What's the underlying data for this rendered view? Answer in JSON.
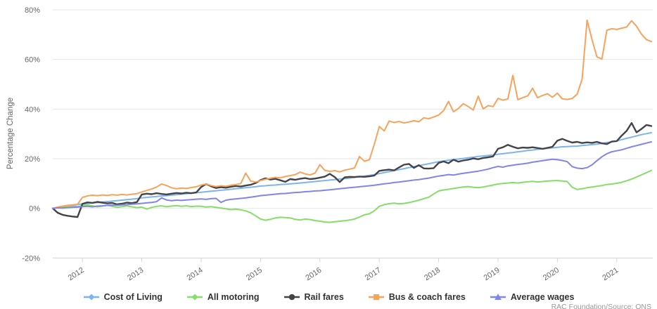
{
  "chart": {
    "ylabel": "Percentage Change",
    "y_tick_labels": [
      "80%",
      "60%",
      "40%",
      "20%",
      "0%",
      "-20%"
    ],
    "x_tick_labels": [
      "2012",
      "2013",
      "2014",
      "2015",
      "2016",
      "2017",
      "2018",
      "2019",
      "2020",
      "2021"
    ],
    "attribution": "RAC Foundation/Source: ONS"
  },
  "chart_data": {
    "type": "line",
    "title": "",
    "xlabel": "",
    "ylabel": "Percentage Change",
    "ylim": [
      -20,
      80
    ],
    "y_ticks_percent": [
      80,
      60,
      40,
      20,
      0,
      -20
    ],
    "x_start": "2011-07",
    "x_end": "2021-08",
    "x_interval": "monthly",
    "x_tick_labels": [
      "2012",
      "2013",
      "2014",
      "2015",
      "2016",
      "2017",
      "2018",
      "2019",
      "2020",
      "2021"
    ],
    "grid": "horizontal-only",
    "legend_position": "bottom",
    "background": "#ffffff",
    "series": [
      {
        "name": "Cost of Living",
        "color": "#7cb5ec",
        "marker": "diamond",
        "line_width": 2,
        "values": [
          0,
          0.3,
          0.6,
          0.9,
          1.2,
          1.5,
          1.8,
          2.0,
          2.2,
          2.3,
          2.5,
          2.7,
          2.9,
          3.1,
          3.3,
          3.5,
          3.7,
          3.9,
          4.2,
          4.4,
          4.6,
          4.8,
          5.0,
          5.1,
          5.3,
          5.5,
          5.7,
          5.9,
          6.1,
          6.3,
          6.5,
          6.7,
          6.9,
          7.1,
          7.3,
          7.5,
          7.7,
          7.9,
          8.1,
          8.3,
          8.5,
          8.7,
          9.0,
          9.1,
          9.3,
          9.4,
          9.6,
          9.7,
          9.9,
          10.0,
          10.2,
          10.4,
          10.6,
          10.8,
          11.0,
          11.2,
          11.4,
          11.6,
          11.8,
          12.0,
          12.2,
          12.5,
          12.7,
          13.0,
          13.3,
          13.6,
          14.0,
          14.4,
          14.8,
          15.2,
          15.6,
          16.0,
          16.4,
          16.8,
          17.2,
          17.6,
          18.0,
          18.4,
          18.8,
          19.1,
          19.4,
          19.6,
          19.9,
          20.1,
          20.4,
          20.6,
          20.9,
          21.1,
          21.3,
          21.5,
          21.8,
          22.0,
          22.3,
          22.5,
          22.8,
          23.0,
          23.3,
          23.5,
          23.8,
          24.0,
          24.2,
          24.4,
          24.6,
          24.8,
          24.9,
          25.0,
          25.1,
          25.3,
          25.5,
          25.7,
          25.9,
          26.2,
          26.5,
          26.8,
          27.2,
          27.7,
          28.2,
          28.7,
          29.2,
          29.7,
          30.1,
          30.5
        ]
      },
      {
        "name": "All motoring",
        "color": "#86dd68",
        "marker": "diamond",
        "line_width": 2,
        "values": [
          0,
          0.4,
          0.2,
          0.6,
          0.9,
          0.7,
          1.1,
          1.4,
          1.0,
          0.6,
          0.9,
          1.2,
          0.8,
          0.4,
          0.7,
          1.0,
          0.6,
          0.3,
          0.5,
          -0.3,
          0.4,
          0.8,
          1.0,
          0.7,
          0.9,
          1.1,
          0.8,
          1.0,
          0.7,
          0.9,
          0.8,
          0.5,
          0.7,
          0.4,
          0.1,
          -0.2,
          -0.5,
          -0.3,
          -0.6,
          -1.0,
          -1.8,
          -3.0,
          -4.3,
          -4.8,
          -4.4,
          -3.9,
          -3.6,
          -3.7,
          -3.9,
          -4.4,
          -4.7,
          -4.3,
          -4.5,
          -4.9,
          -5.2,
          -5.5,
          -5.6,
          -5.4,
          -5.2,
          -5.0,
          -4.7,
          -4.3,
          -3.5,
          -2.6,
          -2.2,
          -1.0,
          0.8,
          1.5,
          1.9,
          2.1,
          1.8,
          2.0,
          2.3,
          2.8,
          3.3,
          3.9,
          4.5,
          5.8,
          7.0,
          7.4,
          7.7,
          8.0,
          8.3,
          8.6,
          8.8,
          8.5,
          8.3,
          8.6,
          9.0,
          9.4,
          9.8,
          10.0,
          10.2,
          10.4,
          10.2,
          10.5,
          10.7,
          10.9,
          10.6,
          10.8,
          11.0,
          11.1,
          11.2,
          11.0,
          10.8,
          8.5,
          7.6,
          7.9,
          8.3,
          8.6,
          8.9,
          9.2,
          9.6,
          9.8,
          10.1,
          10.5,
          11.1,
          11.8,
          12.6,
          13.5,
          14.4,
          15.3
        ]
      },
      {
        "name": "Rail fares",
        "color": "#434348",
        "marker": "circle",
        "line_width": 2.4,
        "values": [
          0,
          -1.8,
          -2.6,
          -3.0,
          -3.3,
          -3.5,
          1.8,
          2.4,
          2.2,
          2.6,
          2.3,
          2.0,
          2.2,
          1.6,
          1.9,
          2.3,
          2.1,
          2.5,
          5.6,
          5.9,
          5.7,
          6.1,
          5.8,
          5.6,
          5.9,
          6.2,
          6.0,
          6.3,
          6.1,
          6.4,
          8.6,
          9.8,
          8.9,
          8.2,
          8.5,
          8.3,
          8.7,
          9.0,
          8.8,
          9.2,
          9.5,
          10.2,
          11.4,
          12.1,
          11.6,
          11.9,
          11.3,
          10.7,
          11.8,
          11.5,
          11.9,
          12.2,
          11.8,
          12.0,
          12.4,
          12.8,
          13.9,
          12.6,
          10.6,
          12.5,
          12.7,
          12.6,
          12.8,
          12.7,
          12.9,
          13.2,
          15.1,
          15.4,
          15.6,
          15.3,
          16.5,
          17.6,
          17.9,
          16.3,
          17.4,
          16.1,
          16.0,
          16.2,
          18.3,
          18.9,
          18.2,
          19.6,
          18.8,
          19.3,
          19.6,
          20.1,
          19.8,
          20.3,
          20.6,
          20.9,
          24.0,
          24.6,
          25.6,
          24.8,
          24.2,
          24.5,
          24.4,
          24.6,
          24.3,
          24.0,
          24.4,
          24.8,
          27.3,
          28.0,
          27.2,
          26.5,
          26.8,
          26.3,
          26.6,
          26.4,
          26.8,
          26.2,
          25.9,
          26.9,
          27.1,
          29.3,
          31.2,
          34.4,
          30.6,
          32.0,
          33.6,
          33.2
        ]
      },
      {
        "name": "Bus & coach fares",
        "color": "#f7a35c",
        "marker": "square",
        "line_width": 2,
        "values": [
          0,
          0.5,
          0.9,
          1.2,
          1.4,
          1.6,
          4.4,
          5.0,
          5.3,
          5.1,
          5.4,
          5.2,
          5.5,
          5.3,
          5.6,
          5.4,
          5.7,
          5.9,
          6.6,
          7.2,
          7.8,
          8.6,
          9.8,
          9.2,
          8.3,
          7.9,
          8.2,
          8.0,
          8.4,
          8.7,
          9.4,
          9.8,
          9.2,
          8.8,
          9.1,
          8.9,
          9.3,
          9.6,
          10.0,
          14.2,
          11.0,
          10.6,
          11.2,
          11.7,
          12.1,
          12.5,
          12.3,
          12.8,
          13.2,
          13.6,
          14.6,
          13.9,
          13.5,
          14.2,
          17.6,
          15.3,
          14.9,
          15.2,
          14.7,
          15.4,
          15.8,
          16.3,
          20.9,
          19.0,
          19.6,
          25.8,
          33.0,
          31.2,
          35.2,
          34.6,
          35.0,
          34.4,
          34.8,
          35.3,
          34.9,
          36.5,
          36.1,
          36.8,
          37.6,
          39.4,
          43.1,
          38.9,
          40.3,
          42.2,
          41.0,
          39.6,
          45.2,
          40.1,
          41.4,
          41.0,
          44.3,
          43.6,
          44.1,
          53.6,
          43.8,
          44.6,
          45.3,
          48.4,
          44.6,
          45.5,
          46.2,
          44.8,
          46.4,
          44.1,
          43.9,
          44.3,
          46.0,
          52.0,
          75.8,
          68.0,
          61.0,
          60.2,
          71.8,
          72.4,
          72.1,
          72.6,
          73.1,
          75.6,
          73.4,
          70.2,
          68.0,
          67.2
        ]
      },
      {
        "name": "Average wages",
        "color": "#8085e9",
        "marker": "triangle",
        "line_width": 2,
        "values": [
          0,
          0.2,
          0.1,
          0.3,
          0.4,
          0.5,
          0.7,
          0.8,
          0.6,
          0.9,
          1.0,
          1.2,
          1.3,
          1.2,
          1.4,
          1.5,
          1.7,
          1.8,
          2.0,
          2.2,
          2.4,
          2.7,
          4.2,
          3.4,
          3.1,
          3.3,
          3.2,
          3.4,
          3.5,
          3.7,
          3.8,
          3.6,
          3.9,
          4.0,
          2.4,
          3.3,
          3.6,
          3.8,
          4.0,
          4.2,
          4.5,
          4.8,
          5.1,
          5.3,
          5.5,
          5.7,
          5.9,
          6.0,
          6.2,
          6.4,
          6.5,
          6.7,
          6.8,
          7.0,
          7.1,
          7.3,
          7.5,
          7.7,
          7.9,
          8.1,
          8.3,
          8.5,
          8.7,
          8.9,
          9.1,
          9.3,
          9.6,
          9.9,
          10.1,
          10.4,
          10.6,
          10.9,
          11.1,
          11.4,
          11.6,
          11.9,
          12.2,
          12.6,
          13.0,
          13.3,
          13.6,
          13.4,
          13.8,
          14.1,
          14.4,
          14.7,
          15.0,
          15.4,
          15.8,
          16.4,
          16.9,
          16.6,
          17.1,
          17.4,
          17.7,
          17.9,
          18.2,
          18.6,
          18.9,
          19.2,
          19.5,
          19.8,
          19.6,
          19.3,
          18.8,
          16.8,
          16.2,
          16.0,
          16.4,
          17.5,
          19.2,
          20.8,
          22.0,
          22.8,
          23.2,
          23.6,
          24.2,
          24.8,
          25.3,
          25.8,
          26.3,
          26.8
        ]
      }
    ]
  }
}
